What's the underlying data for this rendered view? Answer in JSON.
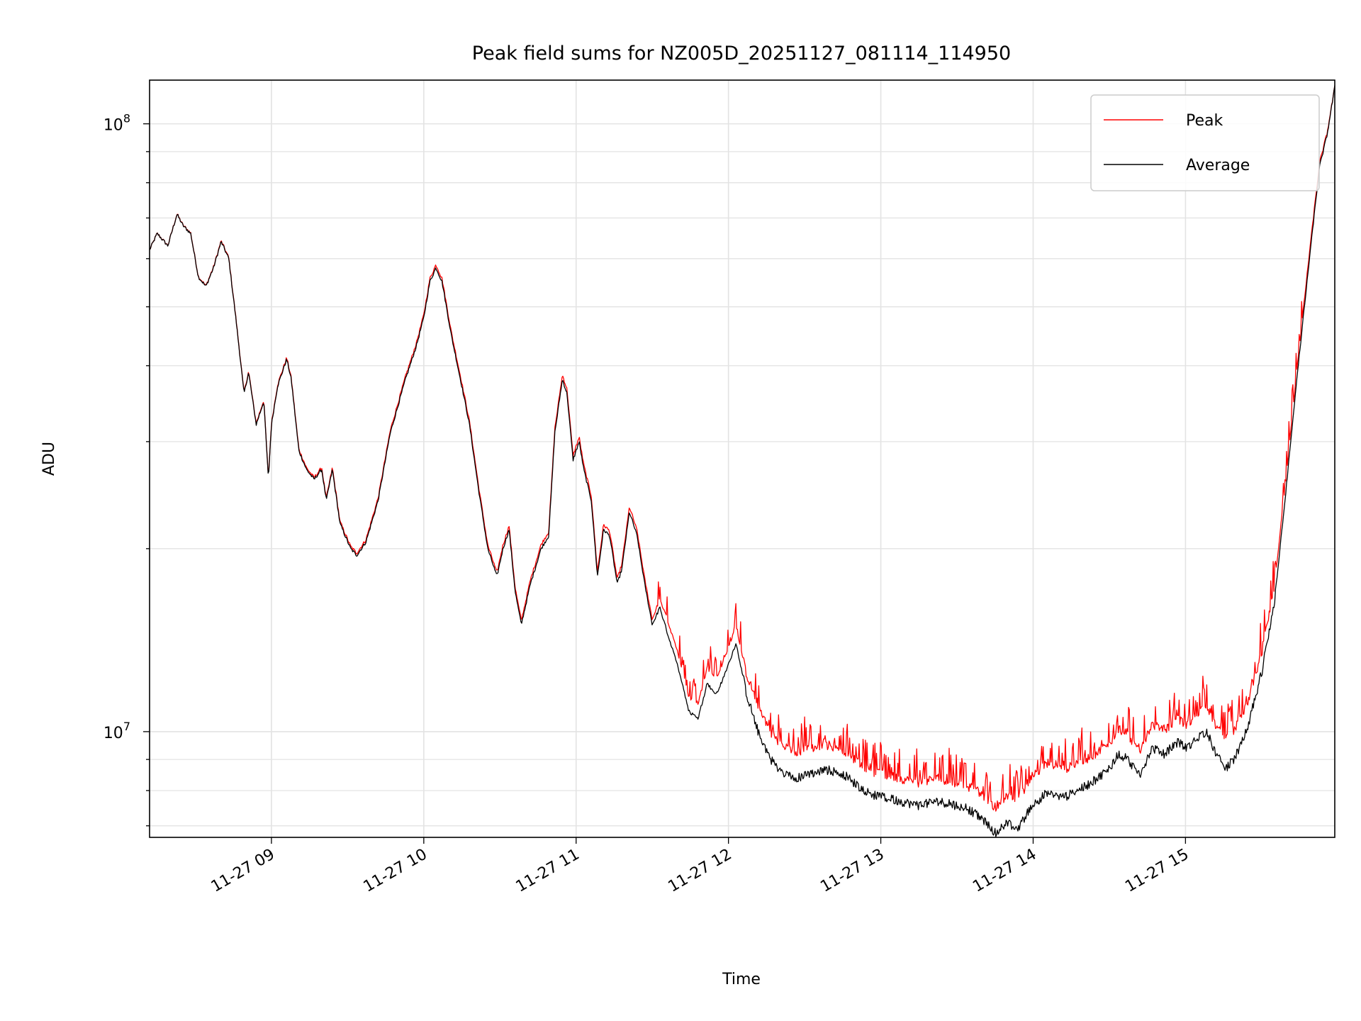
{
  "chart_data": {
    "type": "line",
    "title": "Peak field sums for NZ005D_20251127_081114_114950",
    "xlabel": "Time",
    "ylabel": "ADU",
    "yscale": "log",
    "ylim": [
      6700000,
      118000000
    ],
    "xlim_hours": [
      8.2,
      15.98
    ],
    "grid": true,
    "legend_position": "top-right",
    "x_ticks": [
      {
        "label": "11-27 09",
        "hour": 9
      },
      {
        "label": "11-27 10",
        "hour": 10
      },
      {
        "label": "11-27 11",
        "hour": 11
      },
      {
        "label": "11-27 12",
        "hour": 12
      },
      {
        "label": "11-27 13",
        "hour": 13
      },
      {
        "label": "11-27 14",
        "hour": 14
      },
      {
        "label": "11-27 15",
        "hour": 15
      }
    ],
    "y_ticks": [
      {
        "base": "10",
        "exp": "7",
        "value": 10000000
      },
      {
        "base": "10",
        "exp": "8",
        "value": 100000000
      }
    ],
    "series": [
      {
        "name": "Peak",
        "color": "#ff0000"
      },
      {
        "name": "Average",
        "color": "#000000"
      }
    ],
    "average_points": [
      [
        8.2,
        62000000
      ],
      [
        8.25,
        66000000
      ],
      [
        8.32,
        63000000
      ],
      [
        8.38,
        71000000
      ],
      [
        8.42,
        68000000
      ],
      [
        8.47,
        66000000
      ],
      [
        8.52,
        56000000
      ],
      [
        8.57,
        54000000
      ],
      [
        8.62,
        58000000
      ],
      [
        8.67,
        64000000
      ],
      [
        8.72,
        60000000
      ],
      [
        8.77,
        47000000
      ],
      [
        8.82,
        36000000
      ],
      [
        8.85,
        39000000
      ],
      [
        8.9,
        32000000
      ],
      [
        8.95,
        35000000
      ],
      [
        8.98,
        26000000
      ],
      [
        9.0,
        32000000
      ],
      [
        9.04,
        37000000
      ],
      [
        9.1,
        41000000
      ],
      [
        9.13,
        38000000
      ],
      [
        9.18,
        29000000
      ],
      [
        9.23,
        27000000
      ],
      [
        9.28,
        26000000
      ],
      [
        9.33,
        27000000
      ],
      [
        9.36,
        24000000
      ],
      [
        9.4,
        27000000
      ],
      [
        9.45,
        22000000
      ],
      [
        9.52,
        20000000
      ],
      [
        9.56,
        19500000
      ],
      [
        9.62,
        20500000
      ],
      [
        9.7,
        24000000
      ],
      [
        9.78,
        31000000
      ],
      [
        9.88,
        38000000
      ],
      [
        9.95,
        43000000
      ],
      [
        10.0,
        48000000
      ],
      [
        10.04,
        55000000
      ],
      [
        10.08,
        58000000
      ],
      [
        10.12,
        55000000
      ],
      [
        10.18,
        45000000
      ],
      [
        10.25,
        37000000
      ],
      [
        10.3,
        32000000
      ],
      [
        10.36,
        25000000
      ],
      [
        10.42,
        20000000
      ],
      [
        10.48,
        18000000
      ],
      [
        10.52,
        20000000
      ],
      [
        10.56,
        21500000
      ],
      [
        10.6,
        17000000
      ],
      [
        10.64,
        15000000
      ],
      [
        10.7,
        17500000
      ],
      [
        10.77,
        20000000
      ],
      [
        10.82,
        21000000
      ],
      [
        10.86,
        31000000
      ],
      [
        10.91,
        38000000
      ],
      [
        10.94,
        36000000
      ],
      [
        10.98,
        28000000
      ],
      [
        11.02,
        30000000
      ],
      [
        11.05,
        27000000
      ],
      [
        11.1,
        24000000
      ],
      [
        11.14,
        18000000
      ],
      [
        11.18,
        21500000
      ],
      [
        11.22,
        21000000
      ],
      [
        11.27,
        17500000
      ],
      [
        11.3,
        18500000
      ],
      [
        11.35,
        23000000
      ],
      [
        11.4,
        21000000
      ],
      [
        11.45,
        17500000
      ],
      [
        11.5,
        15000000
      ],
      [
        11.55,
        16000000
      ],
      [
        11.6,
        14500000
      ],
      [
        11.68,
        12500000
      ],
      [
        11.74,
        10800000
      ],
      [
        11.8,
        10500000
      ],
      [
        11.86,
        12000000
      ],
      [
        11.92,
        11500000
      ],
      [
        11.98,
        12500000
      ],
      [
        12.05,
        14000000
      ],
      [
        12.12,
        11500000
      ],
      [
        12.2,
        9900000
      ],
      [
        12.28,
        9000000
      ],
      [
        12.36,
        8500000
      ],
      [
        12.46,
        8400000
      ],
      [
        12.56,
        8550000
      ],
      [
        12.66,
        8650000
      ],
      [
        12.76,
        8500000
      ],
      [
        12.86,
        8100000
      ],
      [
        12.96,
        7850000
      ],
      [
        13.06,
        7750000
      ],
      [
        13.16,
        7650000
      ],
      [
        13.26,
        7550000
      ],
      [
        13.36,
        7700000
      ],
      [
        13.46,
        7600000
      ],
      [
        13.56,
        7500000
      ],
      [
        13.66,
        7200000
      ],
      [
        13.76,
        6780000
      ],
      [
        13.82,
        7100000
      ],
      [
        13.9,
        6900000
      ],
      [
        13.98,
        7500000
      ],
      [
        14.08,
        7900000
      ],
      [
        14.2,
        7800000
      ],
      [
        14.3,
        8000000
      ],
      [
        14.4,
        8300000
      ],
      [
        14.5,
        8700000
      ],
      [
        14.56,
        9200000
      ],
      [
        14.62,
        9000000
      ],
      [
        14.7,
        8500000
      ],
      [
        14.78,
        9400000
      ],
      [
        14.86,
        9200000
      ],
      [
        14.95,
        9600000
      ],
      [
        15.02,
        9400000
      ],
      [
        15.08,
        9800000
      ],
      [
        15.14,
        10000000
      ],
      [
        15.2,
        9200000
      ],
      [
        15.26,
        8700000
      ],
      [
        15.32,
        9000000
      ],
      [
        15.4,
        10000000
      ],
      [
        15.5,
        12500000
      ],
      [
        15.58,
        16000000
      ],
      [
        15.66,
        25000000
      ],
      [
        15.74,
        40000000
      ],
      [
        15.82,
        62000000
      ],
      [
        15.88,
        85000000
      ],
      [
        15.93,
        96000000
      ],
      [
        15.98,
        115000000
      ]
    ],
    "peak_offsets": [
      [
        8.2,
        1.0
      ],
      [
        11.5,
        1.02
      ],
      [
        11.6,
        1.05
      ],
      [
        12.1,
        1.07
      ],
      [
        12.2,
        1.11
      ],
      [
        12.6,
        1.1
      ],
      [
        13.0,
        1.09
      ],
      [
        13.6,
        1.09
      ],
      [
        14.0,
        1.12
      ],
      [
        14.5,
        1.1
      ],
      [
        15.0,
        1.09
      ],
      [
        15.3,
        1.12
      ],
      [
        15.5,
        1.08
      ],
      [
        15.7,
        1.04
      ],
      [
        15.98,
        1.0
      ]
    ]
  }
}
